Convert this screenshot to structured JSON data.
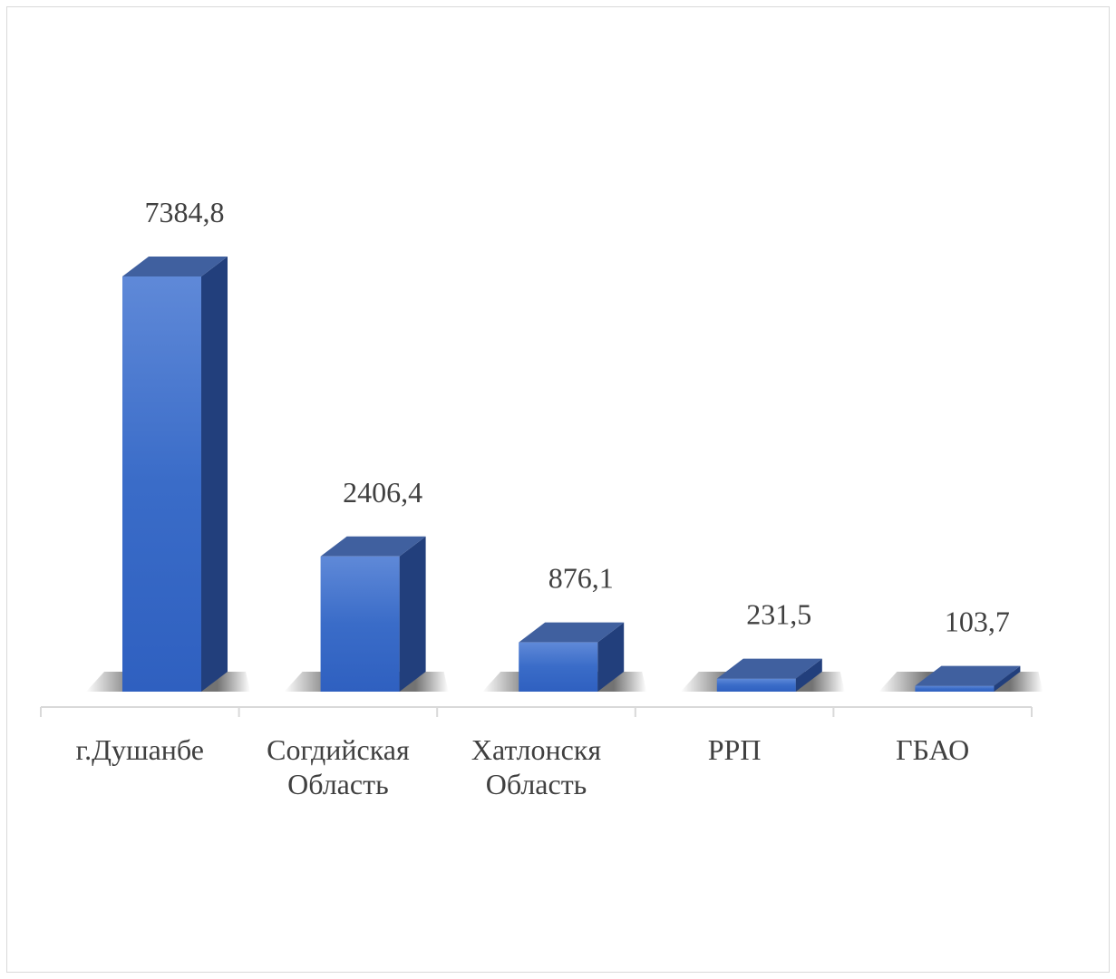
{
  "chart_data": {
    "type": "bar3d",
    "categories": [
      "г.Душанбе",
      "Согдийская Область",
      "Хатлонскя Область",
      "РРП",
      "ГБАО"
    ],
    "values": [
      7384.8,
      2406.4,
      876.1,
      231.5,
      103.7
    ],
    "value_labels": [
      "7384,8",
      "2406,4",
      "876,1",
      "231,5",
      "103,7"
    ],
    "color": "#3a6cc8"
  }
}
